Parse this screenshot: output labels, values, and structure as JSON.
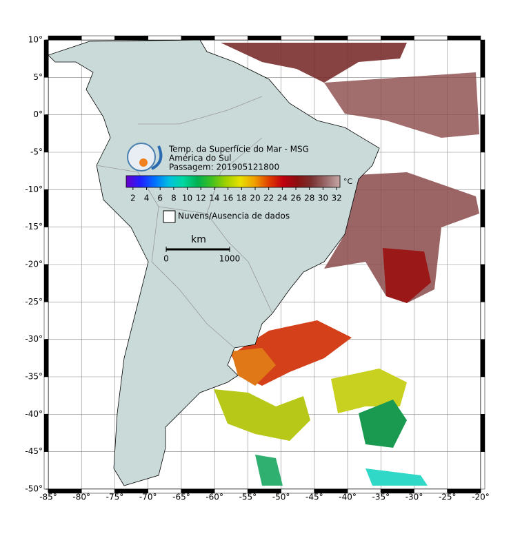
{
  "map": {
    "title_lines": [
      "Temp. da Superfície do Mar - MSG",
      "América do Sul",
      "Passagem: 201905121800"
    ],
    "colorbar": {
      "unit": "°C",
      "range": [
        1,
        32.5
      ],
      "ticks": [
        2,
        4,
        6,
        8,
        10,
        12,
        14,
        16,
        18,
        20,
        22,
        24,
        26,
        28,
        30,
        32
      ],
      "colors": [
        "#6a00c8",
        "#2020ff",
        "#0070ff",
        "#00c0e0",
        "#00d8a0",
        "#00b050",
        "#40c020",
        "#a0d000",
        "#e8e000",
        "#f0a000",
        "#e04000",
        "#c00010",
        "#8a1010",
        "#7a3030",
        "#9a6a6a",
        "#c8a8a8"
      ]
    },
    "legend": {
      "label": "Nuvens/Ausencia de dados"
    },
    "scale_bar": {
      "unit": "km",
      "ticks": [
        0,
        1000
      ]
    },
    "axes": {
      "xlim": [
        -85,
        -20
      ],
      "ylim": [
        -50,
        10
      ],
      "xticks": [
        {
          "value": -85,
          "label": "-85°"
        },
        {
          "value": -80,
          "label": "-80°"
        },
        {
          "value": -75,
          "label": "-75°"
        },
        {
          "value": -70,
          "label": "-70°"
        },
        {
          "value": -65,
          "label": "-65°"
        },
        {
          "value": -60,
          "label": "-60°"
        },
        {
          "value": -55,
          "label": "-55°"
        },
        {
          "value": -50,
          "label": "-50°"
        },
        {
          "value": -45,
          "label": "-45°"
        },
        {
          "value": -40,
          "label": "-40°"
        },
        {
          "value": -35,
          "label": "-35°"
        },
        {
          "value": -30,
          "label": "-30°"
        },
        {
          "value": -25,
          "label": "-25°"
        },
        {
          "value": -20,
          "label": "-20°"
        }
      ],
      "yticks": [
        {
          "value": 10,
          "label": "10°"
        },
        {
          "value": 5,
          "label": "5°"
        },
        {
          "value": 0,
          "label": "0°"
        },
        {
          "value": -5,
          "label": "-5°"
        },
        {
          "value": -10,
          "label": "-10°"
        },
        {
          "value": -15,
          "label": "-15°"
        },
        {
          "value": -20,
          "label": "-20°"
        },
        {
          "value": -25,
          "label": "-25°"
        },
        {
          "value": -30,
          "label": "-30°"
        },
        {
          "value": -35,
          "label": "-35°"
        },
        {
          "value": -40,
          "label": "-40°"
        },
        {
          "value": -45,
          "label": "-45°"
        },
        {
          "value": -50,
          "label": "-50°"
        }
      ]
    }
  }
}
